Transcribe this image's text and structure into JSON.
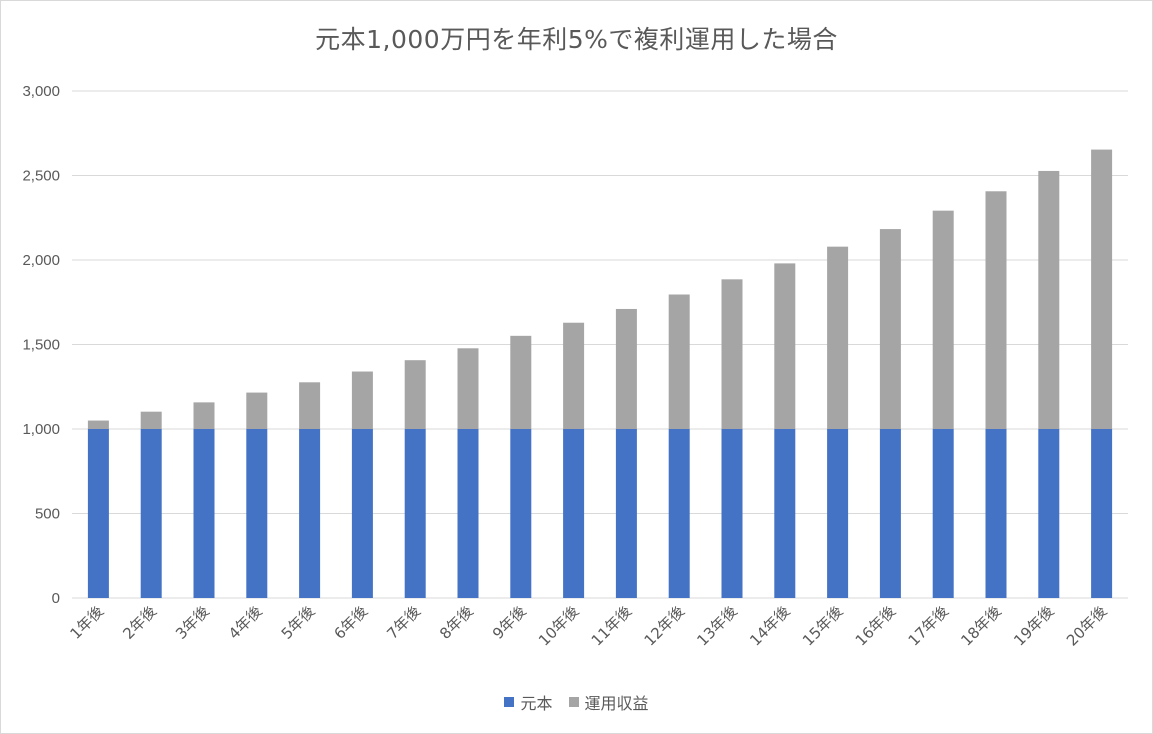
{
  "chart_data": {
    "type": "bar",
    "stacked": true,
    "title": "元本1,000万円を年利5%で複利運用した場合",
    "xlabel": "",
    "ylabel": "",
    "ylim": [
      0,
      3000
    ],
    "yticks": [
      0,
      500,
      1000,
      1500,
      2000,
      2500,
      3000
    ],
    "ytick_labels": [
      "0",
      "500",
      "1,000",
      "1,500",
      "2,000",
      "2,500",
      "3,000"
    ],
    "grid": true,
    "legend_position": "bottom",
    "categories": [
      "1年後",
      "2年後",
      "3年後",
      "4年後",
      "5年後",
      "6年後",
      "7年後",
      "8年後",
      "9年後",
      "10年後",
      "11年後",
      "12年後",
      "13年後",
      "14年後",
      "15年後",
      "16年後",
      "17年後",
      "18年後",
      "19年後",
      "20年後"
    ],
    "series": [
      {
        "name": "元本",
        "color": "#4472C4",
        "values": [
          1000,
          1000,
          1000,
          1000,
          1000,
          1000,
          1000,
          1000,
          1000,
          1000,
          1000,
          1000,
          1000,
          1000,
          1000,
          1000,
          1000,
          1000,
          1000,
          1000
        ]
      },
      {
        "name": "運用収益",
        "color": "#A5A5A5",
        "values": [
          50,
          102.5,
          157.6,
          215.5,
          276.3,
          340.1,
          407.1,
          477.5,
          551.3,
          628.9,
          710.3,
          795.9,
          885.6,
          979.9,
          1078.9,
          1182.9,
          1292.0,
          1406.6,
          1527.0,
          1653.3
        ]
      }
    ]
  },
  "colors": {
    "gridline": "#d9d9d9",
    "axis_text": "#595959",
    "frame_border": "#d9d9d9"
  }
}
